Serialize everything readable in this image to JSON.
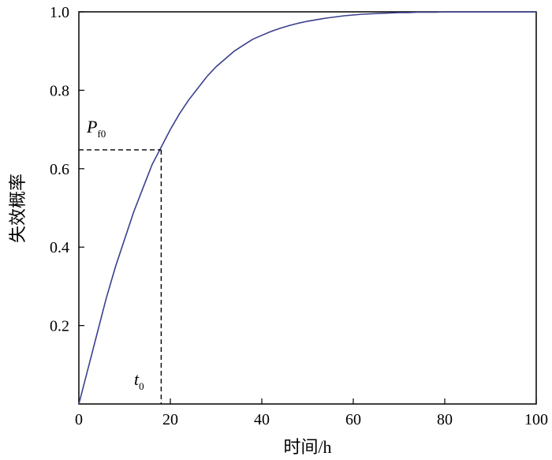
{
  "chart_data": {
    "type": "line",
    "title": "",
    "xlabel": "时间/h",
    "ylabel": "失效概率",
    "xlim": [
      0,
      100
    ],
    "ylim": [
      0,
      1.0
    ],
    "x_ticks": [
      "0",
      "20",
      "40",
      "60",
      "80",
      "100"
    ],
    "y_ticks": [
      "0.2",
      "0.4",
      "0.6",
      "0.8",
      "1.0"
    ],
    "grid": false,
    "series": [
      {
        "color": "#3a3f8f",
        "x": [
          0,
          2,
          4,
          6,
          8,
          10,
          12,
          14,
          16,
          18,
          20,
          22,
          24,
          26,
          28,
          30,
          32,
          34,
          36,
          38,
          40,
          42,
          44,
          46,
          48,
          50,
          52,
          54,
          56,
          58,
          60,
          62,
          64,
          66,
          68,
          70,
          72,
          74,
          76,
          78,
          80,
          82,
          100
        ],
        "y": [
          0.0,
          0.09,
          0.18,
          0.27,
          0.35,
          0.42,
          0.49,
          0.55,
          0.61,
          0.655,
          0.7,
          0.74,
          0.775,
          0.805,
          0.835,
          0.86,
          0.88,
          0.9,
          0.915,
          0.93,
          0.94,
          0.95,
          0.958,
          0.965,
          0.971,
          0.976,
          0.98,
          0.984,
          0.987,
          0.99,
          0.992,
          0.994,
          0.995,
          0.996,
          0.997,
          0.998,
          0.998,
          0.999,
          0.999,
          0.999,
          1.0,
          1.0,
          1.0
        ]
      }
    ],
    "annotations": {
      "pf0_label": "P",
      "pf0_sub": "f0",
      "pf0_value": 0.648,
      "t0_label": "t",
      "t0_sub": "0",
      "t0_value": 18
    },
    "colors": {
      "curve": "#3a3f8f",
      "axis": "#000000"
    }
  }
}
